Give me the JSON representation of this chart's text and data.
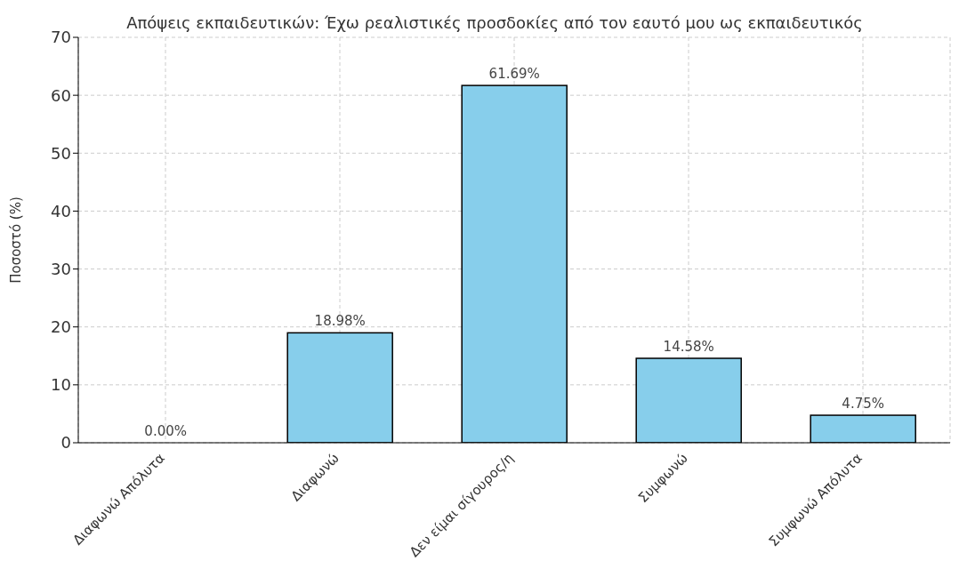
{
  "chart_data": {
    "type": "bar",
    "title": "Απόψεις εκπαιδευτικών: Έχω ρεαλιστικές προσδοκίες από τον εαυτό μου ως εκπαιδευτικός",
    "ylabel": "Ποσοστό (%)",
    "categories": [
      "Διαφωνώ Απόλυτα",
      "Διαφωνώ",
      "Δεν είμαι σίγουρος/η",
      "Συμφωνώ",
      "Συμφωνώ Απόλυτα"
    ],
    "values": [
      0.0,
      18.98,
      61.69,
      14.58,
      4.75
    ],
    "value_labels": [
      "0.00%",
      "18.98%",
      "61.69%",
      "14.58%",
      "4.75%"
    ],
    "color": "#87ceeb",
    "ylim": [
      0,
      70
    ],
    "yticks": [
      0,
      10,
      20,
      30,
      40,
      50,
      60,
      70
    ],
    "grid": true
  }
}
